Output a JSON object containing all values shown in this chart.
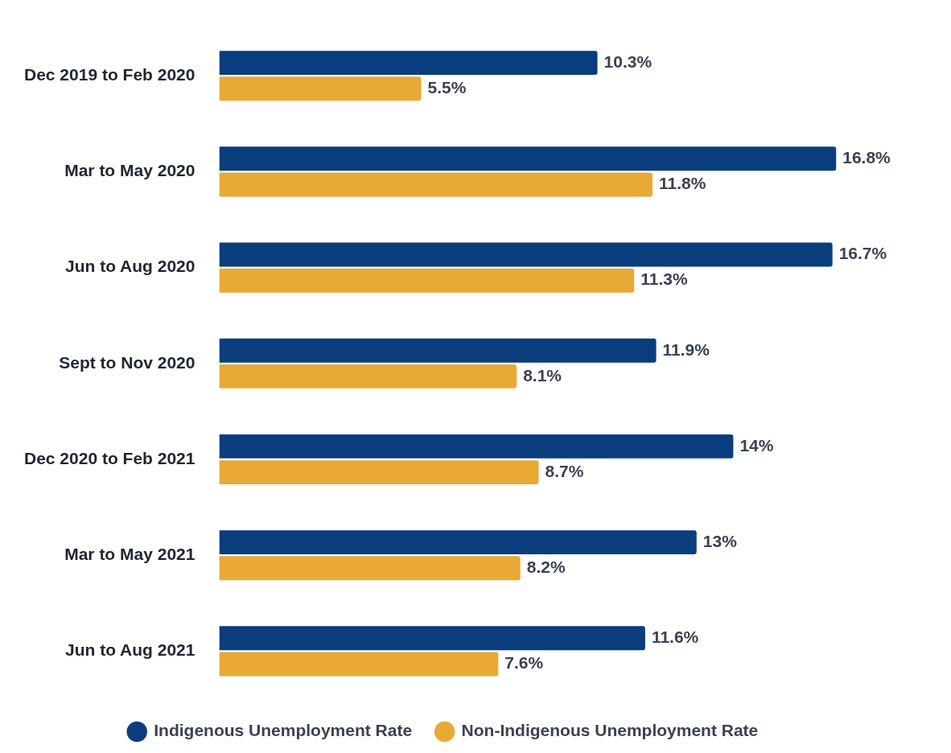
{
  "chart_data": {
    "type": "bar",
    "orientation": "horizontal",
    "categories": [
      "Dec 2019 to Feb 2020",
      "Mar to May 2020",
      "Jun to Aug 2020",
      "Sept to Nov 2020",
      "Dec 2020 to Feb 2021",
      "Mar to May 2021",
      "Jun to Aug 2021"
    ],
    "series": [
      {
        "name": "Indigenous Unemployment Rate",
        "color": "#0a3d7d",
        "values": [
          10.3,
          16.8,
          16.7,
          11.9,
          14,
          13,
          11.6
        ],
        "value_labels": [
          "10.3%",
          "16.8%",
          "16.7%",
          "11.9%",
          "14%",
          "13%",
          "11.6%"
        ]
      },
      {
        "name": "Non-Indigenous Unemployment Rate",
        "color": "#e8a935",
        "values": [
          5.5,
          11.8,
          11.3,
          8.1,
          8.7,
          8.2,
          7.6
        ],
        "value_labels": [
          "5.5%",
          "11.8%",
          "11.3%",
          "8.1%",
          "8.7%",
          "8.2%",
          "7.6%"
        ]
      }
    ],
    "tick_labels": "y",
    "legend": "bottom"
  }
}
